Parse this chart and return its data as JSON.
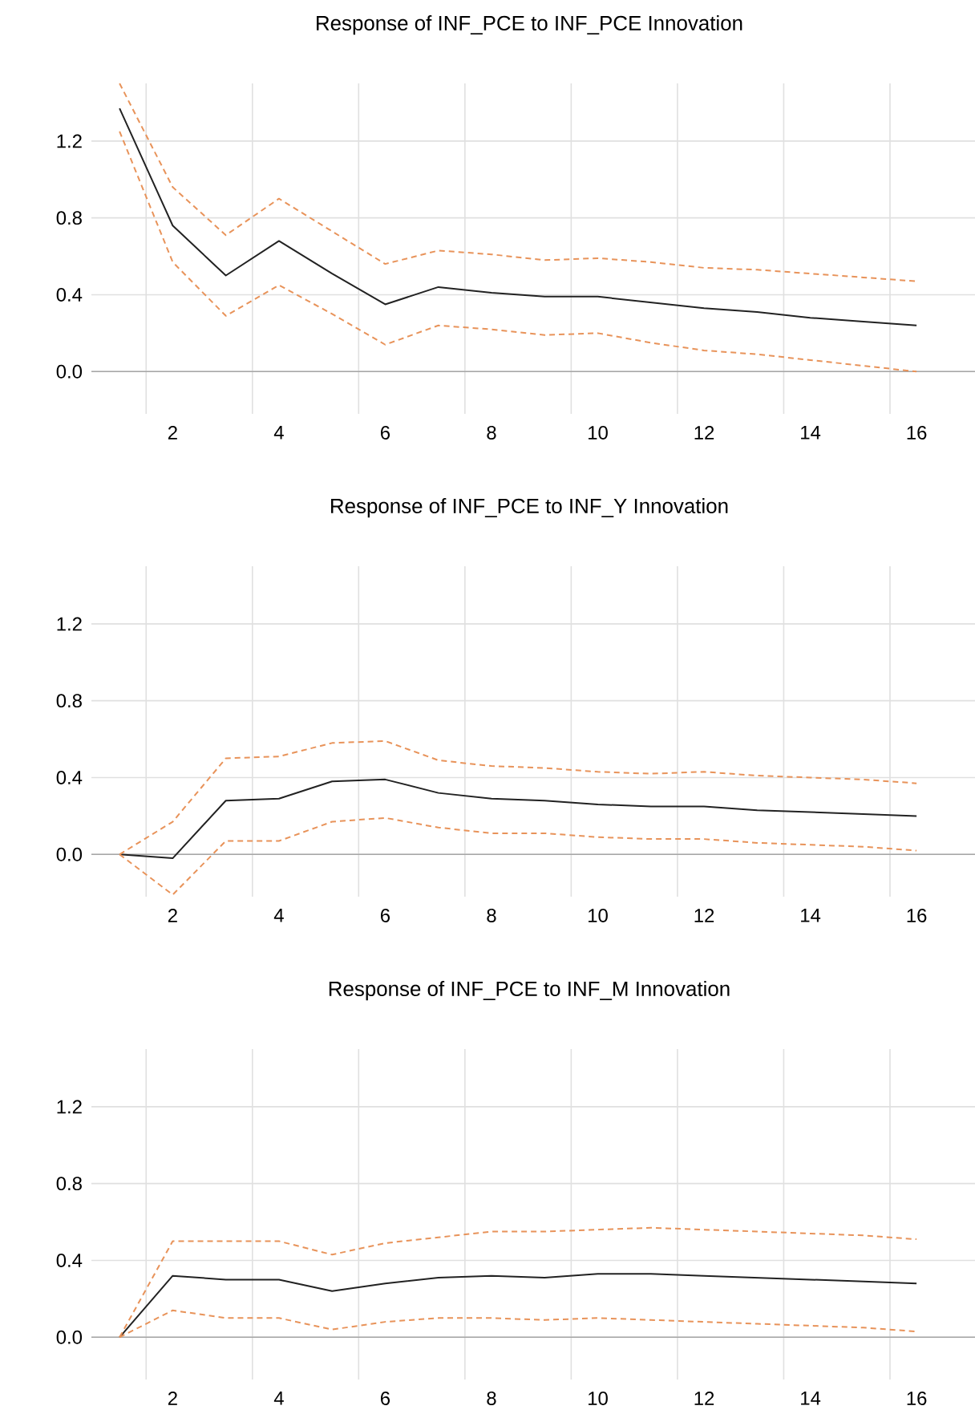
{
  "chart_data": [
    {
      "type": "line",
      "title": "Response of INF_PCE to INF_PCE Innovation",
      "categories": [
        null,
        "2",
        null,
        "4",
        null,
        "6",
        null,
        "8",
        null,
        "10",
        null,
        "12",
        null,
        "14",
        null,
        "16"
      ],
      "ylim": [
        -0.22,
        1.5
      ],
      "yticks": [
        {
          "value": 0,
          "label": "0.0"
        },
        {
          "value": 0.4,
          "label": "0.4"
        },
        {
          "value": 0.8,
          "label": "0.8"
        },
        {
          "value": 1.2,
          "label": "1.2"
        }
      ],
      "grid": true,
      "series": [
        {
          "color": "#222222",
          "line_style": "solid",
          "values": [
            1.37,
            0.76,
            0.5,
            0.68,
            0.51,
            0.35,
            0.44,
            0.41,
            0.39,
            0.39,
            0.36,
            0.33,
            0.31,
            0.28,
            0.26,
            0.24
          ]
        },
        {
          "color": "#e8935a",
          "line_style": "dashed",
          "values": [
            1.5,
            0.96,
            0.71,
            0.9,
            0.73,
            0.56,
            0.63,
            0.61,
            0.58,
            0.59,
            0.57,
            0.54,
            0.53,
            0.51,
            0.49,
            0.47
          ]
        },
        {
          "color": "#e8935a",
          "line_style": "dashed",
          "values": [
            1.25,
            0.57,
            0.29,
            0.45,
            0.3,
            0.14,
            0.24,
            0.22,
            0.19,
            0.2,
            0.15,
            0.11,
            0.09,
            0.06,
            0.03,
            0.0
          ]
        }
      ]
    },
    {
      "type": "line",
      "title": "Response of INF_PCE to INF_Y Innovation",
      "categories": [
        null,
        "2",
        null,
        "4",
        null,
        "6",
        null,
        "8",
        null,
        "10",
        null,
        "12",
        null,
        "14",
        null,
        "16"
      ],
      "ylim": [
        -0.22,
        1.5
      ],
      "yticks": [
        {
          "value": 0,
          "label": "0.0"
        },
        {
          "value": 0.4,
          "label": "0.4"
        },
        {
          "value": 0.8,
          "label": "0.8"
        },
        {
          "value": 1.2,
          "label": "1.2"
        }
      ],
      "grid": true,
      "series": [
        {
          "color": "#222222",
          "line_style": "solid",
          "values": [
            0.0,
            -0.02,
            0.28,
            0.29,
            0.38,
            0.39,
            0.32,
            0.29,
            0.28,
            0.26,
            0.25,
            0.25,
            0.23,
            0.22,
            0.21,
            0.2
          ]
        },
        {
          "color": "#e8935a",
          "line_style": "dashed",
          "values": [
            0.0,
            0.17,
            0.5,
            0.51,
            0.58,
            0.59,
            0.49,
            0.46,
            0.45,
            0.43,
            0.42,
            0.43,
            0.41,
            0.4,
            0.39,
            0.37
          ]
        },
        {
          "color": "#e8935a",
          "line_style": "dashed",
          "values": [
            0.0,
            -0.21,
            0.07,
            0.07,
            0.17,
            0.19,
            0.14,
            0.11,
            0.11,
            0.09,
            0.08,
            0.08,
            0.06,
            0.05,
            0.04,
            0.02
          ]
        }
      ]
    },
    {
      "type": "line",
      "title": "Response of INF_PCE to INF_M Innovation",
      "categories": [
        null,
        "2",
        null,
        "4",
        null,
        "6",
        null,
        "8",
        null,
        "10",
        null,
        "12",
        null,
        "14",
        null,
        "16"
      ],
      "ylim": [
        -0.22,
        1.5
      ],
      "yticks": [
        {
          "value": 0,
          "label": "0.0"
        },
        {
          "value": 0.4,
          "label": "0.4"
        },
        {
          "value": 0.8,
          "label": "0.8"
        },
        {
          "value": 1.2,
          "label": "1.2"
        }
      ],
      "grid": true,
      "series": [
        {
          "color": "#222222",
          "line_style": "solid",
          "values": [
            0.0,
            0.32,
            0.3,
            0.3,
            0.24,
            0.28,
            0.31,
            0.32,
            0.31,
            0.33,
            0.33,
            0.32,
            0.31,
            0.3,
            0.29,
            0.28
          ]
        },
        {
          "color": "#e8935a",
          "line_style": "dashed",
          "values": [
            0.0,
            0.5,
            0.5,
            0.5,
            0.43,
            0.49,
            0.52,
            0.55,
            0.55,
            0.56,
            0.57,
            0.56,
            0.55,
            0.54,
            0.53,
            0.51
          ]
        },
        {
          "color": "#e8935a",
          "line_style": "dashed",
          "values": [
            0.0,
            0.14,
            0.1,
            0.1,
            0.04,
            0.08,
            0.1,
            0.1,
            0.09,
            0.1,
            0.09,
            0.08,
            0.07,
            0.06,
            0.05,
            0.03
          ]
        }
      ]
    }
  ]
}
